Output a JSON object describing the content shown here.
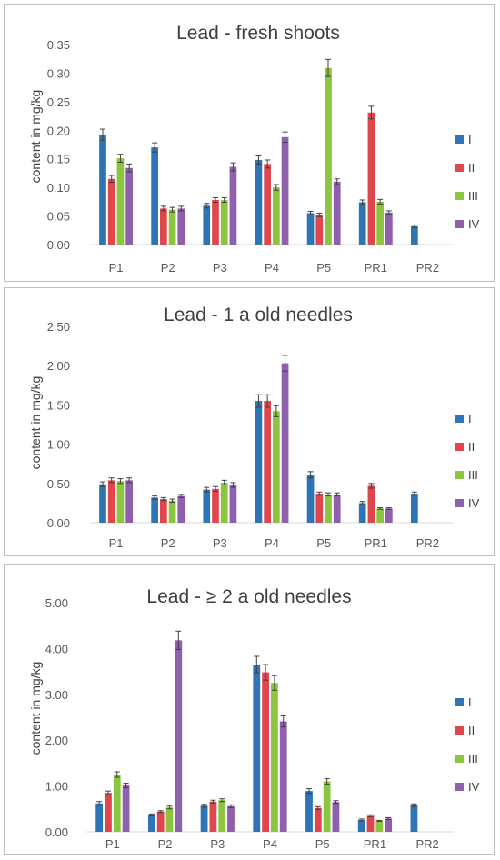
{
  "colors": {
    "I": "#2E75B6",
    "II": "#E0474C",
    "III": "#8CC63F",
    "IV": "#8E60AE",
    "axis": "#d9d9d9",
    "text": "#595959"
  },
  "chart_data": [
    {
      "type": "bar",
      "title": "Lead - fresh shoots",
      "ylabel": "content in mg/kg",
      "xlabel": "",
      "ylim": [
        0,
        0.35
      ],
      "yticks": [
        "0.00",
        "0.05",
        "0.10",
        "0.15",
        "0.20",
        "0.25",
        "0.30",
        "0.35"
      ],
      "categories": [
        "P1",
        "P2",
        "P3",
        "P4",
        "P5",
        "PR1",
        "PR2"
      ],
      "legend_position": "right",
      "error_bars": true,
      "series": [
        {
          "name": "I",
          "values": [
            0.192,
            0.17,
            0.068,
            0.148,
            0.055,
            0.074,
            0.032
          ],
          "errors": [
            0.01,
            0.008,
            0.004,
            0.007,
            0.003,
            0.004,
            0.002
          ]
        },
        {
          "name": "II",
          "values": [
            0.115,
            0.063,
            0.078,
            0.141,
            0.052,
            0.231,
            null
          ],
          "errors": [
            0.006,
            0.004,
            0.004,
            0.007,
            0.003,
            0.011,
            null
          ]
        },
        {
          "name": "III",
          "values": [
            0.151,
            0.061,
            0.078,
            0.1,
            0.309,
            0.075,
            null
          ],
          "errors": [
            0.007,
            0.004,
            0.004,
            0.005,
            0.015,
            0.004,
            null
          ]
        },
        {
          "name": "IV",
          "values": [
            0.134,
            0.063,
            0.136,
            0.188,
            0.11,
            0.056,
            null
          ],
          "errors": [
            0.007,
            0.004,
            0.007,
            0.009,
            0.005,
            0.003,
            null
          ]
        }
      ]
    },
    {
      "type": "bar",
      "title": "Lead - 1 a old needles",
      "ylabel": "content in mg/kg",
      "xlabel": "",
      "ylim": [
        0,
        2.5
      ],
      "yticks": [
        "0.00",
        "0.50",
        "1.00",
        "1.50",
        "2.00",
        "2.50"
      ],
      "categories": [
        "P1",
        "P2",
        "P3",
        "P4",
        "P5",
        "PR1",
        "PR2"
      ],
      "legend_position": "right",
      "error_bars": true,
      "series": [
        {
          "name": "I",
          "values": [
            0.49,
            0.32,
            0.42,
            1.55,
            0.61,
            0.25,
            0.37
          ],
          "errors": [
            0.03,
            0.02,
            0.03,
            0.08,
            0.04,
            0.02,
            0.02
          ]
        },
        {
          "name": "II",
          "values": [
            0.54,
            0.3,
            0.43,
            1.55,
            0.37,
            0.47,
            null
          ],
          "errors": [
            0.03,
            0.02,
            0.03,
            0.08,
            0.02,
            0.03,
            null
          ]
        },
        {
          "name": "III",
          "values": [
            0.53,
            0.28,
            0.51,
            1.42,
            0.36,
            0.18,
            null
          ],
          "errors": [
            0.03,
            0.02,
            0.03,
            0.07,
            0.02,
            0.01,
            null
          ]
        },
        {
          "name": "IV",
          "values": [
            0.54,
            0.34,
            0.48,
            2.03,
            0.36,
            0.18,
            null
          ],
          "errors": [
            0.03,
            0.02,
            0.03,
            0.1,
            0.02,
            0.01,
            null
          ]
        }
      ]
    },
    {
      "type": "bar",
      "title": "Lead - ≥ 2 a old needles",
      "ylabel": "content in mg/kg",
      "xlabel": "",
      "ylim": [
        0,
        5
      ],
      "yticks": [
        "0.00",
        "1.00",
        "2.00",
        "3.00",
        "4.00",
        "5.00"
      ],
      "categories": [
        "P1",
        "P2",
        "P3",
        "P4",
        "P5",
        "PR1",
        "PR2"
      ],
      "legend_position": "right",
      "error_bars": true,
      "series": [
        {
          "name": "I",
          "values": [
            0.62,
            0.37,
            0.57,
            3.65,
            0.89,
            0.26,
            0.58
          ],
          "errors": [
            0.04,
            0.02,
            0.03,
            0.18,
            0.05,
            0.02,
            0.03
          ]
        },
        {
          "name": "II",
          "values": [
            0.85,
            0.44,
            0.66,
            3.48,
            0.52,
            0.35,
            null
          ],
          "errors": [
            0.04,
            0.02,
            0.03,
            0.17,
            0.03,
            0.02,
            null
          ]
        },
        {
          "name": "III",
          "values": [
            1.25,
            0.53,
            0.69,
            3.25,
            1.1,
            0.24,
            null
          ],
          "errors": [
            0.06,
            0.03,
            0.03,
            0.16,
            0.06,
            0.01,
            null
          ]
        },
        {
          "name": "IV",
          "values": [
            1.01,
            4.18,
            0.56,
            2.41,
            0.65,
            0.29,
            null
          ],
          "errors": [
            0.05,
            0.2,
            0.03,
            0.12,
            0.03,
            0.02,
            null
          ]
        }
      ]
    }
  ]
}
